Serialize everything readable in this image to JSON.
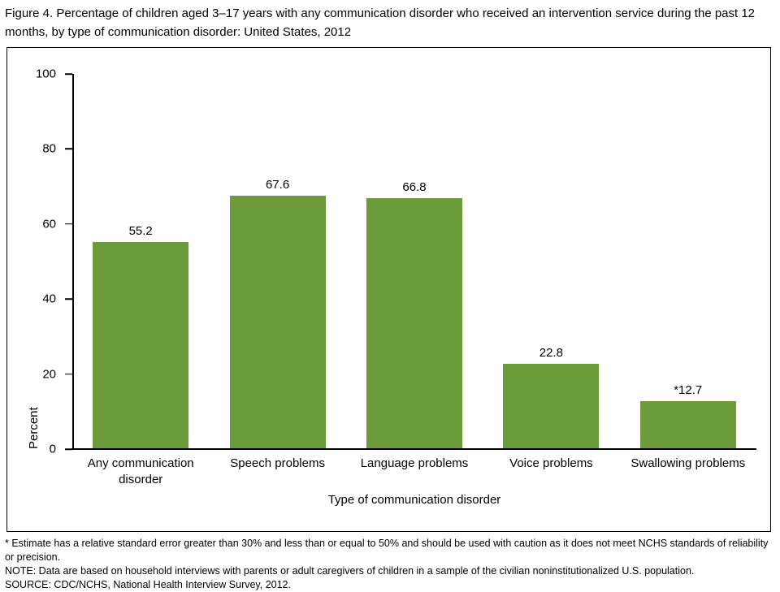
{
  "title": "Figure 4. Percentage of children aged 3–17 years with any communication disorder who received an intervention service during the past 12 months, by type of communication disorder: United States, 2012",
  "chart_data": {
    "type": "bar",
    "categories": [
      "Any communication disorder",
      "Speech problems",
      "Language problems",
      "Voice problems",
      "Swallowing problems"
    ],
    "values": [
      55.2,
      67.6,
      66.8,
      22.8,
      12.7
    ],
    "value_labels": [
      "55.2",
      "67.6",
      "66.8",
      "22.8",
      "*12.7"
    ],
    "xlabel": "Type of communication disorder",
    "ylabel": "Percent",
    "ylim": [
      0,
      100
    ],
    "yticks": [
      0,
      20,
      40,
      60,
      80,
      100
    ],
    "bar_color": "#6b9c39",
    "grid": false,
    "legend": "none"
  },
  "footnotes": [
    "* Estimate has a relative standard error greater than 30% and less than or equal to 50% and should be used with caution as it does not meet NCHS standards of reliability or precision.",
    "NOTE: Data are based on household interviews with parents or adult caregivers of children in a sample of the civilian noninstitutionalized U.S. population.",
    "SOURCE: CDC/NCHS, National Health Interview Survey, 2012."
  ]
}
